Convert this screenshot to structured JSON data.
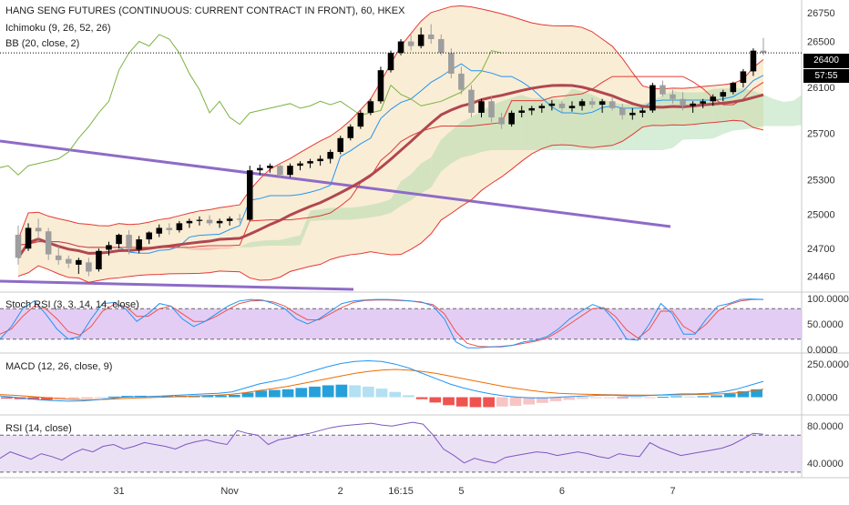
{
  "header": {
    "title": "HANG SENG FUTURES (CONTINUOUS: CURRENT CONTRACT IN FRONT), 60, HKEX",
    "ichimoku_label": "Ichimoku (9, 26, 52, 26)",
    "bb_label": "BB (20, close, 2)"
  },
  "last_price": {
    "value": "26400",
    "countdown": "57:55"
  },
  "colors": {
    "bull": "#000000",
    "bear": "#9e9e9e",
    "bb_line": "#e53935",
    "bb_fill": "#f5deb3",
    "bb_basis": "#b0474f",
    "tenkan": "#2196f3",
    "kijun": "#e53935",
    "chikou": "#7cb342",
    "cloud_bull": "#a5d6a7",
    "cloud_bear": "#ef9a9a",
    "trendline": "#8e6bc7",
    "rsi_line": "#7e57c2",
    "rsi_band": "#e6d9f2",
    "stoch_band": "#d9b8ef",
    "stoch_k": "#2196f3",
    "stoch_d": "#ef5350",
    "macd_line": "#2196f3",
    "macd_signal": "#ef6c00",
    "hist_pos": "#26a0da",
    "hist_pos_light": "#b3e0f2",
    "hist_neg": "#ef5350",
    "hist_neg_light": "#f8c4c4"
  },
  "panes": {
    "stoch_label": "Stoch RSI (3, 3, 14, 14, close)",
    "macd_label": "MACD (12, 26, close, 9)",
    "rsi_label": "RSI (14, close)"
  },
  "chart_data": {
    "type": "candlestick",
    "title": "HANG SENG FUTURES (CONTINUOUS: CURRENT CONTRACT IN FRONT), 60, HKEX",
    "main": {
      "ylim": [
        24330,
        26860
      ],
      "y_ticks": [
        "26750",
        "26500",
        "26100",
        "25700",
        "25300",
        "25000",
        "24700",
        "24460"
      ],
      "y_tick_values": [
        26750,
        26500,
        26100,
        25700,
        25300,
        25000,
        24700,
        24460
      ],
      "last_price": 26400,
      "x_ticks": [
        {
          "label": "31",
          "x": 10
        },
        {
          "label": "Nov",
          "x": 21
        },
        {
          "label": "2",
          "x": 32
        },
        {
          "label": "16:15",
          "x": 38
        },
        {
          "label": "5",
          "x": 44
        },
        {
          "label": "6",
          "x": 54
        },
        {
          "label": "7",
          "x": 65
        }
      ],
      "ohlc": [
        [
          24820,
          24900,
          24560,
          24620
        ],
        [
          24700,
          24920,
          24680,
          24880
        ],
        [
          24880,
          24960,
          24780,
          24850
        ],
        [
          24850,
          24880,
          24600,
          24650
        ],
        [
          24640,
          24720,
          24560,
          24600
        ],
        [
          24610,
          24640,
          24530,
          24570
        ],
        [
          24560,
          24620,
          24480,
          24600
        ],
        [
          24580,
          24620,
          24460,
          24500
        ],
        [
          24520,
          24700,
          24500,
          24680
        ],
        [
          24690,
          24760,
          24640,
          24730
        ],
        [
          24740,
          24830,
          24700,
          24820
        ],
        [
          24820,
          24860,
          24650,
          24700
        ],
        [
          24690,
          24810,
          24660,
          24780
        ],
        [
          24780,
          24850,
          24740,
          24840
        ],
        [
          24830,
          24910,
          24800,
          24880
        ],
        [
          24880,
          24920,
          24820,
          24860
        ],
        [
          24860,
          24940,
          24840,
          24920
        ],
        [
          24920,
          24960,
          24880,
          24940
        ],
        [
          24940,
          24980,
          24900,
          24950
        ],
        [
          24950,
          24990,
          24900,
          24920
        ],
        [
          24920,
          24960,
          24880,
          24940
        ],
        [
          24940,
          24980,
          24900,
          24960
        ],
        [
          24960,
          25000,
          24920,
          24950
        ],
        [
          24950,
          25420,
          24940,
          25380
        ],
        [
          25380,
          25430,
          25340,
          25400
        ],
        [
          25400,
          25440,
          25360,
          25420
        ],
        [
          25420,
          25440,
          25320,
          25340
        ],
        [
          25340,
          25440,
          25320,
          25420
        ],
        [
          25420,
          25460,
          25380,
          25440
        ],
        [
          25440,
          25480,
          25400,
          25460
        ],
        [
          25460,
          25510,
          25420,
          25480
        ],
        [
          25480,
          25560,
          25440,
          25540
        ],
        [
          25540,
          25680,
          25520,
          25660
        ],
        [
          25660,
          25780,
          25640,
          25760
        ],
        [
          25760,
          25900,
          25740,
          25880
        ],
        [
          25880,
          26000,
          25860,
          25980
        ],
        [
          25980,
          26280,
          25960,
          26250
        ],
        [
          26250,
          26420,
          26230,
          26400
        ],
        [
          26400,
          26520,
          26380,
          26500
        ],
        [
          26500,
          26560,
          26420,
          26460
        ],
        [
          26460,
          26620,
          26440,
          26560
        ],
        [
          26560,
          26650,
          26480,
          26520
        ],
        [
          26520,
          26560,
          26380,
          26400
        ],
        [
          26400,
          26440,
          26180,
          26220
        ],
        [
          26220,
          26280,
          26040,
          26080
        ],
        [
          26080,
          26120,
          25840,
          25880
        ],
        [
          25880,
          26000,
          25840,
          25980
        ],
        [
          25980,
          26020,
          25800,
          25840
        ],
        [
          25840,
          25880,
          25740,
          25780
        ],
        [
          25780,
          25900,
          25760,
          25880
        ],
        [
          25880,
          25940,
          25840,
          25900
        ],
        [
          25900,
          25940,
          25860,
          25920
        ],
        [
          25920,
          25960,
          25880,
          25940
        ],
        [
          25940,
          25990,
          25900,
          25960
        ],
        [
          25960,
          25980,
          25880,
          25920
        ],
        [
          25920,
          25980,
          25890,
          25940
        ],
        [
          25940,
          26000,
          25900,
          25980
        ],
        [
          25980,
          26010,
          25920,
          25950
        ],
        [
          25950,
          26000,
          25880,
          25980
        ],
        [
          25980,
          26020,
          25900,
          25920
        ],
        [
          25920,
          25960,
          25820,
          25860
        ],
        [
          25860,
          25920,
          25820,
          25880
        ],
        [
          25880,
          25920,
          25840,
          25900
        ],
        [
          25900,
          26140,
          25880,
          26120
        ],
        [
          26120,
          26160,
          26020,
          26040
        ],
        [
          26040,
          26080,
          25960,
          26000
        ],
        [
          26000,
          26060,
          25900,
          25940
        ],
        [
          25940,
          25980,
          25880,
          25960
        ],
        [
          25960,
          26000,
          25920,
          25980
        ],
        [
          25980,
          26040,
          25940,
          26020
        ],
        [
          26020,
          26080,
          25980,
          26060
        ],
        [
          26060,
          26150,
          26040,
          26140
        ],
        [
          26140,
          26260,
          26100,
          26240
        ],
        [
          26240,
          26440,
          26200,
          26420
        ],
        [
          26420,
          26530,
          26380,
          26400
        ]
      ]
    },
    "stoch_rsi": {
      "ylim": [
        0,
        100
      ],
      "y_ticks": [
        "100.0000",
        "50.0000",
        "0.0000"
      ],
      "y_tick_values": [
        100,
        50,
        0
      ],
      "bands": [
        80,
        20
      ],
      "k": [
        20,
        45,
        80,
        95,
        70,
        40,
        20,
        25,
        60,
        90,
        92,
        80,
        55,
        70,
        90,
        85,
        60,
        45,
        55,
        70,
        85,
        95,
        98,
        97,
        90,
        80,
        60,
        50,
        60,
        75,
        90,
        95,
        97,
        98,
        98,
        97,
        95,
        93,
        85,
        60,
        15,
        3,
        3,
        5,
        5,
        8,
        15,
        18,
        25,
        40,
        60,
        75,
        88,
        80,
        55,
        20,
        18,
        50,
        90,
        70,
        30,
        30,
        60,
        85,
        90,
        98,
        99,
        98
      ],
      "d": [
        30,
        40,
        65,
        85,
        80,
        60,
        35,
        28,
        45,
        75,
        88,
        85,
        65,
        65,
        80,
        85,
        70,
        55,
        55,
        65,
        78,
        90,
        95,
        96,
        93,
        85,
        70,
        58,
        58,
        70,
        82,
        92,
        96,
        97,
        97,
        96,
        95,
        92,
        88,
        70,
        35,
        12,
        6,
        5,
        6,
        8,
        12,
        16,
        22,
        35,
        50,
        65,
        80,
        82,
        65,
        38,
        22,
        40,
        75,
        75,
        45,
        32,
        50,
        75,
        88,
        95,
        98,
        98
      ]
    },
    "macd": {
      "ylim": [
        -120,
        320
      ],
      "y_ticks": [
        "250.0000",
        "0.0000"
      ],
      "y_tick_values": [
        250,
        0
      ],
      "macd": [
        10,
        0,
        -10,
        -20,
        -25,
        -30,
        -28,
        -20,
        -10,
        0,
        5,
        5,
        10,
        15,
        20,
        25,
        30,
        40,
        70,
        100,
        120,
        140,
        170,
        200,
        230,
        255,
        270,
        275,
        270,
        250,
        220,
        180,
        140,
        100,
        70,
        45,
        25,
        10,
        0,
        -5,
        -5,
        0,
        5,
        10,
        15,
        15,
        10,
        10,
        15,
        20,
        25,
        25,
        30,
        40,
        60,
        90,
        120
      ],
      "signal": [
        20,
        15,
        8,
        0,
        -8,
        -15,
        -18,
        -18,
        -15,
        -10,
        -6,
        -3,
        0,
        4,
        8,
        12,
        16,
        22,
        35,
        50,
        65,
        80,
        100,
        120,
        140,
        160,
        180,
        195,
        205,
        210,
        205,
        195,
        180,
        160,
        140,
        120,
        100,
        80,
        65,
        50,
        38,
        30,
        25,
        22,
        20,
        18,
        17,
        16,
        16,
        17,
        18,
        20,
        22,
        26,
        33,
        45,
        60
      ],
      "histogram": [
        -10,
        -15,
        -18,
        -20,
        -17,
        -15,
        -10,
        -2,
        5,
        10,
        11,
        8,
        10,
        11,
        12,
        13,
        14,
        18,
        35,
        50,
        55,
        60,
        70,
        80,
        90,
        95,
        90,
        80,
        65,
        40,
        15,
        -15,
        -40,
        -60,
        -70,
        -75,
        -75,
        -70,
        -65,
        -55,
        -43,
        -30,
        -20,
        -12,
        -5,
        -3,
        -7,
        -6,
        -1,
        3,
        7,
        5,
        8,
        14,
        27,
        45,
        60
      ]
    },
    "rsi": {
      "ylim": [
        25,
        90
      ],
      "y_ticks": [
        "80.0000",
        "40.0000"
      ],
      "y_tick_values": [
        80,
        40
      ],
      "bands": [
        70,
        30
      ],
      "values": [
        45,
        52,
        48,
        44,
        50,
        47,
        43,
        50,
        55,
        52,
        58,
        60,
        55,
        58,
        62,
        60,
        58,
        55,
        60,
        63,
        65,
        62,
        60,
        75,
        72,
        70,
        60,
        65,
        67,
        70,
        72,
        75,
        78,
        80,
        81,
        82,
        83,
        81,
        80,
        82,
        84,
        82,
        70,
        55,
        48,
        40,
        45,
        42,
        40,
        46,
        48,
        50,
        52,
        51,
        48,
        50,
        52,
        50,
        47,
        45,
        50,
        48,
        47,
        62,
        56,
        52,
        48,
        50,
        52,
        54,
        56,
        60,
        66,
        72,
        71
      ]
    }
  }
}
